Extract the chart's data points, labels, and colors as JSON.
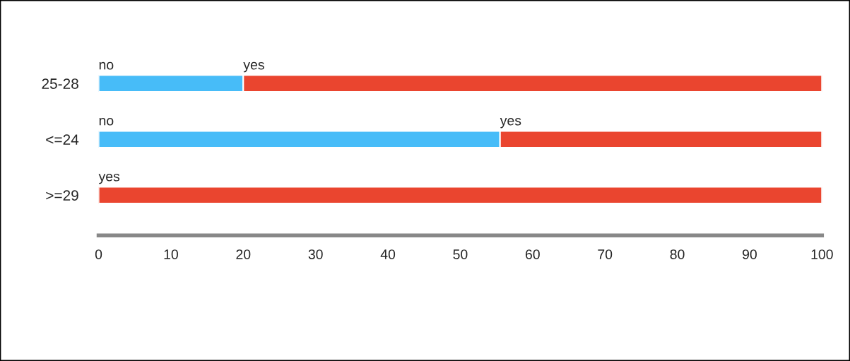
{
  "chart_data": {
    "type": "bar",
    "orientation": "horizontal",
    "stacked": true,
    "categories": [
      "25-28",
      "<=24",
      ">=29"
    ],
    "series": [
      {
        "name": "no",
        "color": "#47bcf8",
        "values": [
          20,
          55.5,
          0
        ]
      },
      {
        "name": "yes",
        "color": "#ea452f",
        "values": [
          80,
          44.5,
          100
        ]
      }
    ],
    "xlim": [
      0,
      100
    ],
    "xticks": [
      0,
      10,
      20,
      30,
      40,
      50,
      60,
      70,
      80,
      90,
      100
    ],
    "grid": false,
    "legend": false
  }
}
